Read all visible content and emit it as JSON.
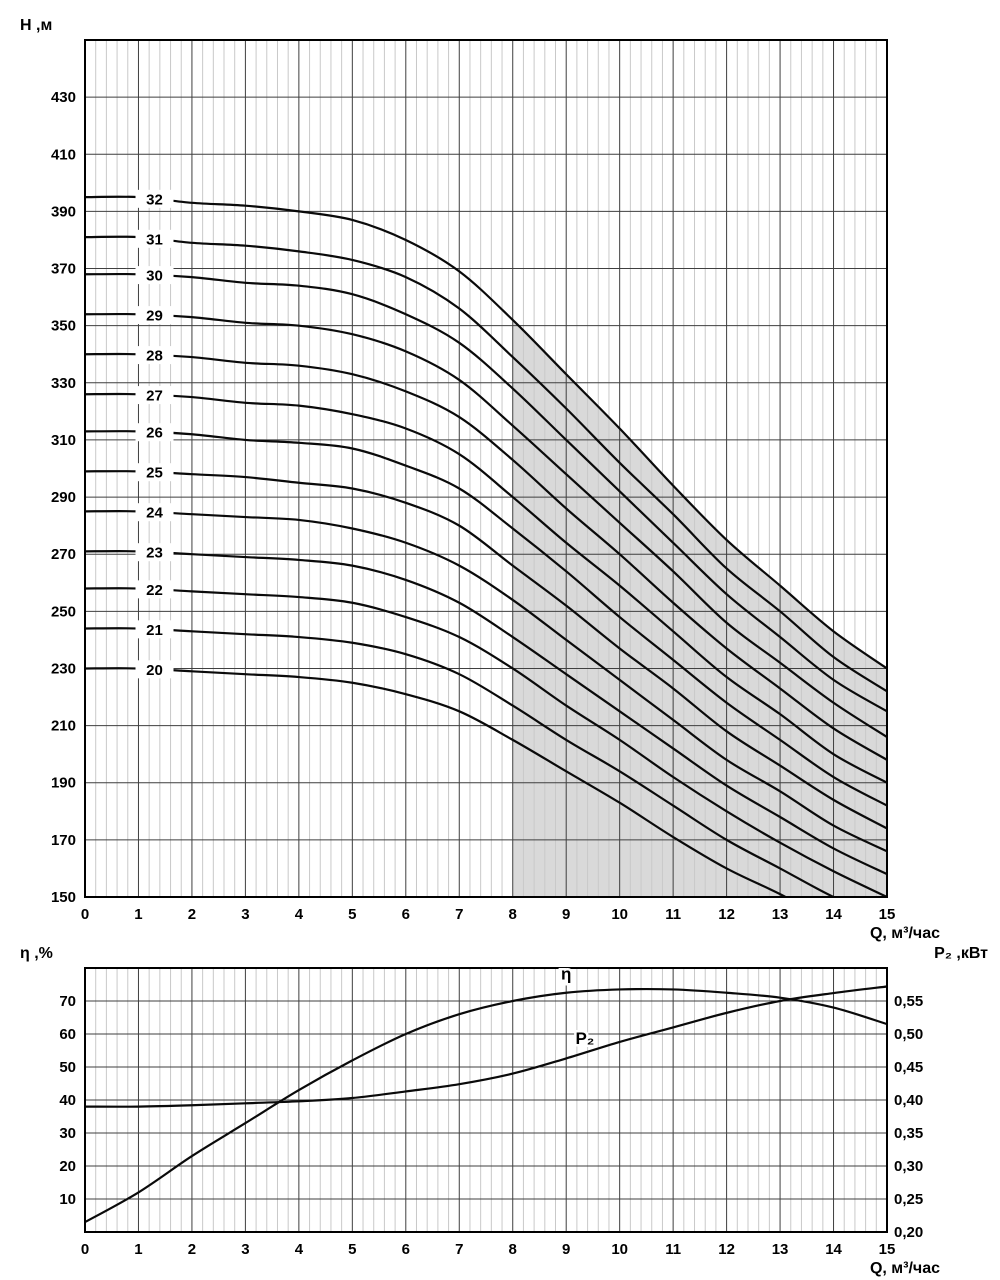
{
  "figure": {
    "background": "#ffffff"
  },
  "chart_data": [
    {
      "id": "head_flow",
      "type": "line",
      "ylabel": "H ,м",
      "xlabel": "Q, м³/час",
      "xlim": [
        0,
        15
      ],
      "ylim": [
        150,
        450
      ],
      "x_major_step": 1,
      "x_minor_step": 0.2,
      "y_major_step": 20,
      "grid": true,
      "legend_position": "on-curve",
      "y_ticks": [
        430,
        410,
        390,
        370,
        350,
        330,
        310,
        290,
        270,
        250,
        230,
        210,
        190,
        170,
        150
      ],
      "x": [
        0,
        1,
        2,
        3,
        4,
        5,
        6,
        7,
        8,
        9,
        10,
        11,
        12,
        13,
        14,
        15
      ],
      "shaded_region": {
        "x_from": 8,
        "x_to": 15,
        "color": "#d9d9d9"
      },
      "series_label_q": 1.3,
      "series": [
        {
          "name": "32",
          "values": [
            395,
            395,
            393,
            392,
            390,
            387,
            380,
            369,
            352,
            333,
            314,
            294,
            275,
            259,
            243,
            230
          ]
        },
        {
          "name": "31",
          "values": [
            381,
            381,
            379,
            378,
            376,
            373,
            367,
            356,
            339,
            321,
            302,
            284,
            265,
            250,
            234,
            222
          ]
        },
        {
          "name": "30",
          "values": [
            368,
            368,
            367,
            365,
            364,
            361,
            354,
            344,
            328,
            310,
            292,
            274,
            256,
            241,
            226,
            215
          ]
        },
        {
          "name": "29",
          "values": [
            354,
            354,
            353,
            351,
            350,
            347,
            341,
            331,
            315,
            298,
            281,
            264,
            246,
            232,
            218,
            206
          ]
        },
        {
          "name": "28",
          "values": [
            340,
            340,
            339,
            337,
            336,
            333,
            327,
            318,
            303,
            286,
            270,
            253,
            237,
            223,
            209,
            198
          ]
        },
        {
          "name": "27",
          "values": [
            326,
            326,
            325,
            323,
            322,
            319,
            314,
            305,
            290,
            274,
            259,
            243,
            227,
            214,
            200,
            190
          ]
        },
        {
          "name": "26",
          "values": [
            313,
            313,
            312,
            310,
            309,
            307,
            301,
            293,
            279,
            264,
            248,
            233,
            218,
            205,
            192,
            182
          ]
        },
        {
          "name": "25",
          "values": [
            299,
            299,
            298,
            297,
            295,
            293,
            288,
            280,
            266,
            252,
            237,
            223,
            208,
            196,
            184,
            174
          ]
        },
        {
          "name": "24",
          "values": [
            285,
            285,
            284,
            283,
            282,
            279,
            274,
            266,
            254,
            240,
            226,
            212,
            198,
            187,
            175,
            166
          ]
        },
        {
          "name": "23",
          "values": [
            271,
            271,
            270,
            269,
            268,
            266,
            261,
            253,
            241,
            228,
            215,
            202,
            189,
            178,
            167,
            158
          ]
        },
        {
          "name": "22",
          "values": [
            258,
            258,
            257,
            256,
            255,
            253,
            248,
            241,
            230,
            217,
            205,
            192,
            180,
            169,
            159,
            150
          ]
        },
        {
          "name": "21",
          "values": [
            244,
            244,
            243,
            242,
            241,
            239,
            235,
            228,
            217,
            205,
            194,
            182,
            170,
            160,
            150,
            142
          ]
        },
        {
          "name": "20",
          "values": [
            230,
            230,
            229,
            228,
            227,
            225,
            221,
            215,
            205,
            194,
            183,
            171,
            160,
            151,
            141,
            134
          ]
        }
      ]
    },
    {
      "id": "efficiency_power",
      "type": "line",
      "ylabel_left": "η ,%",
      "ylabel_right": "P₂ ,кВт",
      "xlabel": "Q, м³/час",
      "xlim": [
        0,
        15
      ],
      "ylim_left": [
        0,
        80
      ],
      "ylim_right": [
        0.2,
        0.6
      ],
      "x_major_step": 1,
      "x_minor_step": 0.2,
      "grid": true,
      "left_ticks": [
        70,
        60,
        50,
        40,
        30,
        20,
        10
      ],
      "right_ticks": [
        {
          "label": "0,55",
          "value": 0.55
        },
        {
          "label": "0,50",
          "value": 0.5
        },
        {
          "label": "0,45",
          "value": 0.45
        },
        {
          "label": "0,40",
          "value": 0.4
        },
        {
          "label": "0,35",
          "value": 0.35
        },
        {
          "label": "0,30",
          "value": 0.3
        },
        {
          "label": "0,25",
          "value": 0.25
        },
        {
          "label": "0,20",
          "value": 0.2
        }
      ],
      "x": [
        0,
        1,
        2,
        3,
        4,
        5,
        6,
        7,
        8,
        9,
        10,
        11,
        12,
        13,
        14,
        15
      ],
      "series": [
        {
          "name": "η",
          "axis": "left",
          "values": [
            3,
            12,
            23,
            33,
            43,
            52,
            60,
            66,
            70,
            72.5,
            73.5,
            73.5,
            72.5,
            71,
            68,
            63
          ]
        },
        {
          "name": "P₂",
          "axis": "right",
          "values": [
            0.39,
            0.39,
            0.392,
            0.395,
            0.398,
            0.403,
            0.413,
            0.424,
            0.44,
            0.463,
            0.488,
            0.51,
            0.532,
            0.55,
            0.562,
            0.572
          ]
        }
      ],
      "curve_labels": [
        {
          "text": "η",
          "q": 9.0,
          "eta": 76.5
        },
        {
          "text": "P₂",
          "q": 9.35,
          "eta": 57
        }
      ]
    }
  ]
}
